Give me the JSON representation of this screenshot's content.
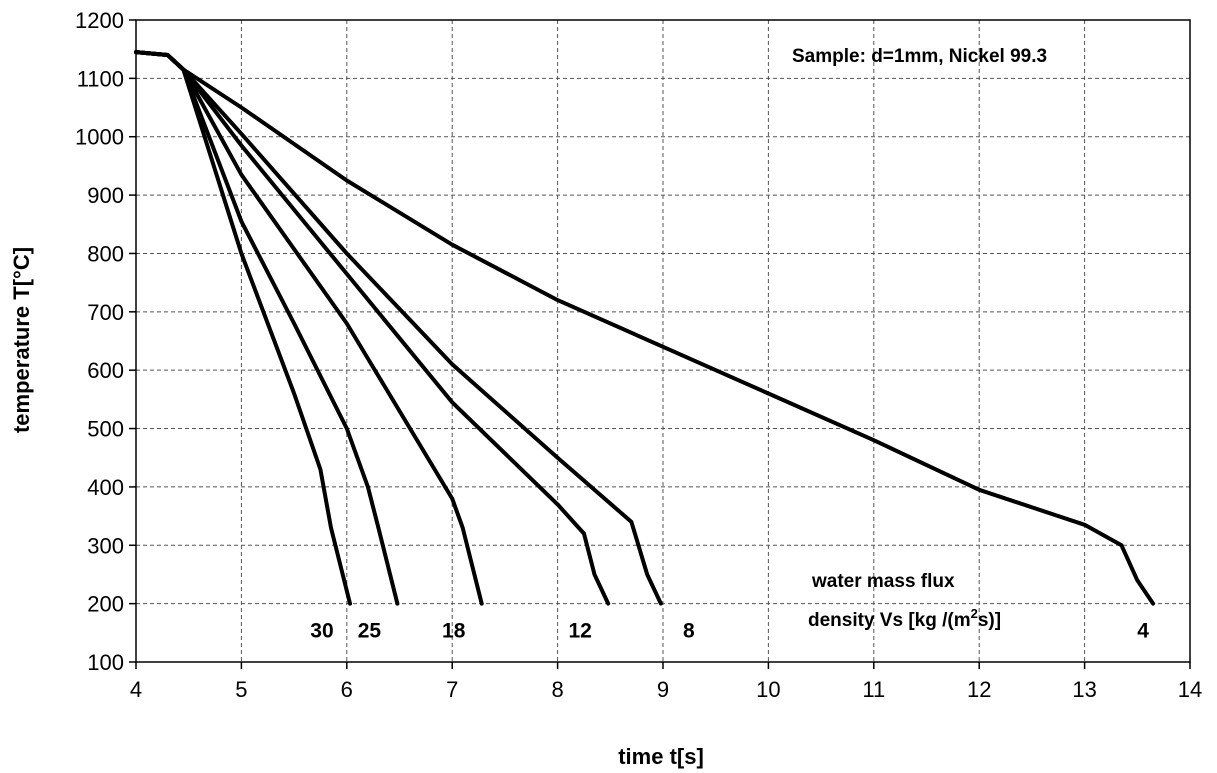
{
  "chart_data": {
    "type": "line",
    "xlabel": "time t[s]",
    "ylabel": "temperature T[°C]",
    "xlim": [
      4,
      14
    ],
    "ylim": [
      100,
      1200
    ],
    "xticks": [
      4,
      5,
      6,
      7,
      8,
      9,
      10,
      11,
      12,
      13,
      14
    ],
    "yticks": [
      100,
      200,
      300,
      400,
      500,
      600,
      700,
      800,
      900,
      1000,
      1100,
      1200
    ],
    "grid": true,
    "annotations": {
      "sample": "Sample: d=1mm, Nickel 99.3",
      "legend_title_line1": "water mass flux",
      "legend_title_line2_pre": "density Vs [kg /(m",
      "legend_title_sup": "2",
      "legend_title_line2_post": "s)]"
    },
    "series": [
      {
        "name": "30",
        "x": [
          4.0,
          4.3,
          4.45,
          5.0,
          5.5,
          5.75,
          5.85,
          6.03
        ],
        "y": [
          1145,
          1140,
          1115,
          800,
          560,
          430,
          330,
          200
        ]
      },
      {
        "name": "25",
        "x": [
          4.0,
          4.3,
          4.45,
          5.0,
          5.5,
          6.0,
          6.2,
          6.3,
          6.48
        ],
        "y": [
          1145,
          1140,
          1115,
          855,
          680,
          500,
          400,
          330,
          200
        ]
      },
      {
        "name": "18",
        "x": [
          4.0,
          4.3,
          4.45,
          5.0,
          6.0,
          6.5,
          7.0,
          7.1,
          7.28
        ],
        "y": [
          1145,
          1140,
          1115,
          935,
          680,
          530,
          380,
          330,
          200
        ]
      },
      {
        "name": "12",
        "x": [
          4.0,
          4.3,
          4.45,
          5.0,
          6.0,
          7.0,
          8.0,
          8.25,
          8.35,
          8.48
        ],
        "y": [
          1145,
          1140,
          1115,
          985,
          765,
          545,
          370,
          320,
          250,
          200
        ]
      },
      {
        "name": "8",
        "x": [
          4.0,
          4.3,
          4.45,
          5.0,
          6.0,
          7.0,
          8.0,
          8.7,
          8.85,
          8.98
        ],
        "y": [
          1145,
          1140,
          1115,
          1005,
          800,
          610,
          450,
          340,
          250,
          200
        ]
      },
      {
        "name": "4",
        "x": [
          4.0,
          4.3,
          4.45,
          5.0,
          6.0,
          7.0,
          8.0,
          9.0,
          10.0,
          11.0,
          12.0,
          13.0,
          13.35,
          13.5,
          13.65
        ],
        "y": [
          1145,
          1140,
          1115,
          1050,
          925,
          815,
          720,
          640,
          560,
          480,
          395,
          335,
          300,
          240,
          200
        ]
      }
    ]
  }
}
